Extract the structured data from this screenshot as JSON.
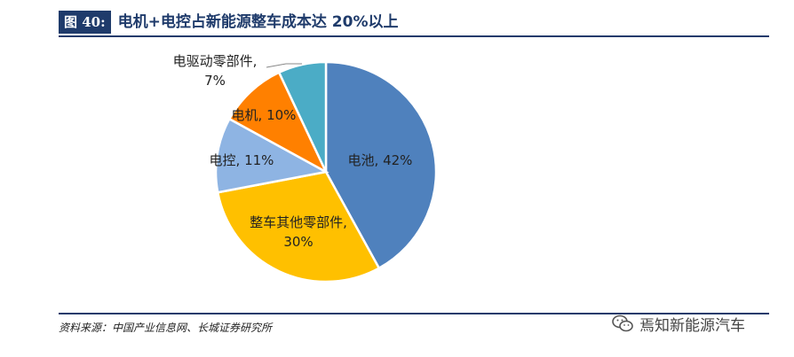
{
  "header": {
    "figure_tag": "图 40:",
    "title": "电机+电控占新能源整车成本达 20%以上"
  },
  "footer": {
    "source": "资料来源：中国产业信息网、长城证券研究所",
    "watermark": "焉知新能源汽车",
    "watermark_icon": "wechat-icon"
  },
  "chart_data": {
    "type": "pie",
    "slices": [
      {
        "label": "电池, 42%",
        "value": 42,
        "color": "#4f81bd"
      },
      {
        "label": "整车其他零部件,",
        "label2": "30%",
        "value": 30,
        "color": "#ffc000"
      },
      {
        "label": "电控, 11%",
        "value": 11,
        "color": "#8eb4e3"
      },
      {
        "label": "电机, 10%",
        "value": 10,
        "color": "#ff8000"
      },
      {
        "label": "电驱动零部件,",
        "label2": "7%",
        "value": 7,
        "color": "#4bacc6"
      }
    ]
  }
}
